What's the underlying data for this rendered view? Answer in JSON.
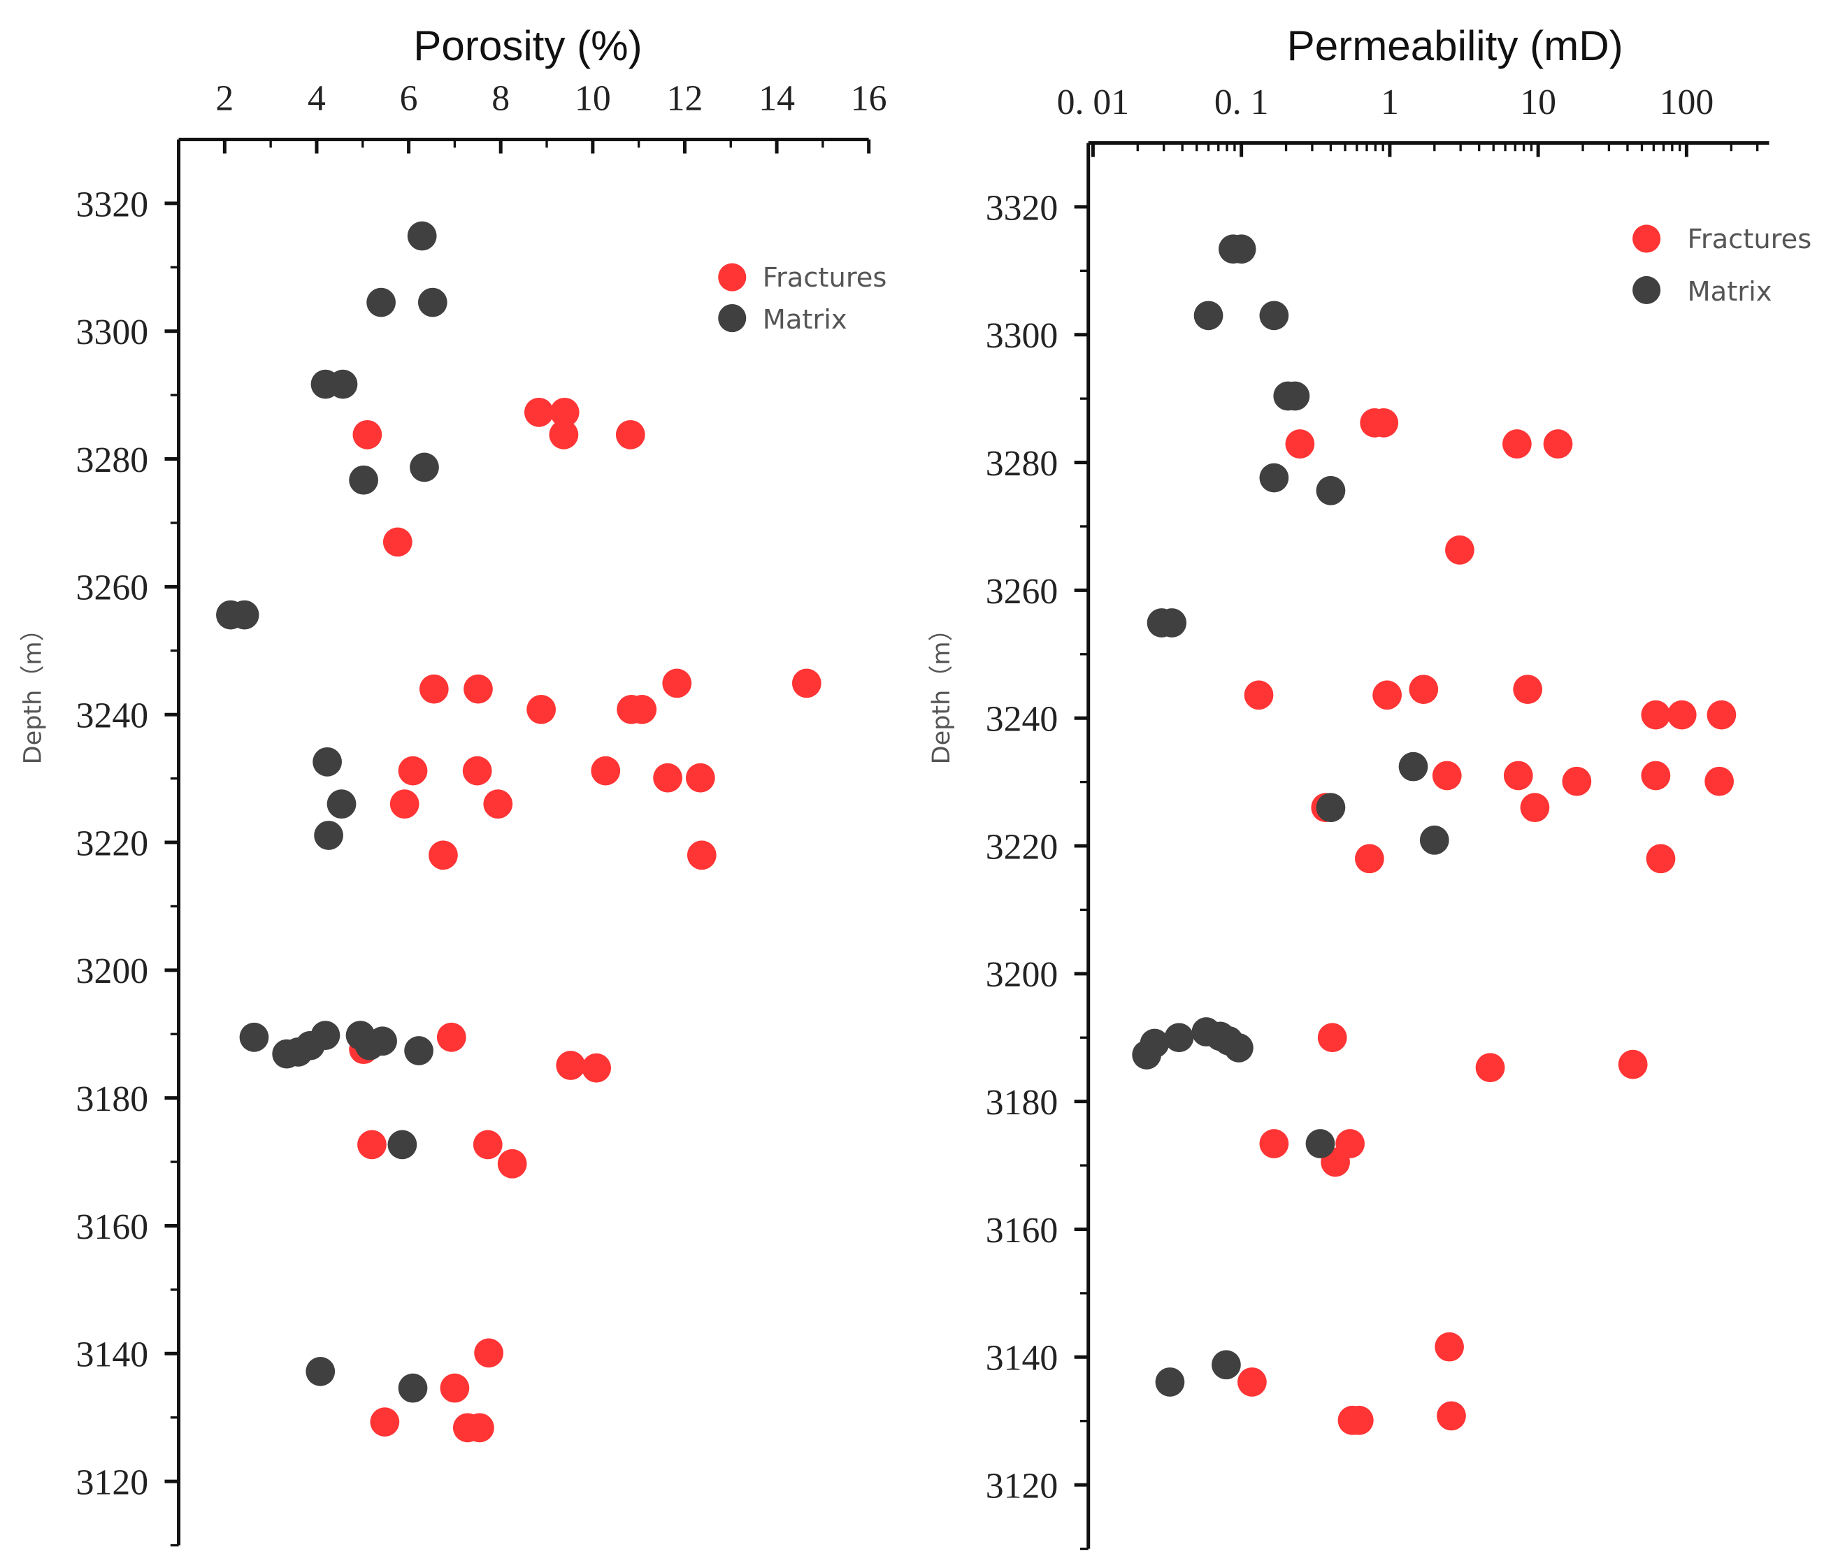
{
  "colors": {
    "Fractures": "#ff3434",
    "Matrix": "#404040"
  },
  "chart_data": [
    {
      "type": "scatter",
      "title": "Porosity (%)",
      "xlabel": "Porosity (%)",
      "ylabel": "Depth（m）",
      "xscale": "linear",
      "xlim": [
        1,
        16
      ],
      "ylim": [
        3110,
        3330
      ],
      "y_inverted": false,
      "xticks": [
        2,
        4,
        6,
        8,
        10,
        12,
        14,
        16
      ],
      "xtick_labels": [
        "2",
        "4",
        "6",
        "8",
        "10",
        "12",
        "14",
        "16"
      ],
      "yticks": [
        3120,
        3140,
        3160,
        3180,
        3200,
        3220,
        3240,
        3260,
        3280,
        3300,
        3320
      ],
      "ytick_labels": [
        "3120",
        "3140",
        "3160",
        "3180",
        "3200",
        "3220",
        "3240",
        "3260",
        "3280",
        "3300",
        "3320"
      ],
      "legend": {
        "placement": "top-right",
        "entries": [
          "Fractures",
          "Matrix"
        ]
      },
      "series": [
        {
          "name": "Fractures",
          "points": [
            [
              8.83,
              3287.3
            ],
            [
              9.39,
              3287.3
            ],
            [
              9.37,
              3283.8
            ],
            [
              5.1,
              3283.8
            ],
            [
              10.82,
              3283.8
            ],
            [
              5.76,
              3267.0
            ],
            [
              6.55,
              3244.0
            ],
            [
              7.51,
              3244.0
            ],
            [
              11.83,
              3244.9
            ],
            [
              14.65,
              3244.9
            ],
            [
              8.88,
              3240.8
            ],
            [
              10.84,
              3240.8
            ],
            [
              11.07,
              3240.8
            ],
            [
              6.09,
              3231.2
            ],
            [
              7.49,
              3231.2
            ],
            [
              10.28,
              3231.2
            ],
            [
              11.63,
              3230.1
            ],
            [
              12.34,
              3230.1
            ],
            [
              5.91,
              3226.0
            ],
            [
              7.94,
              3226.0
            ],
            [
              6.75,
              3218.0
            ],
            [
              12.37,
              3218.0
            ],
            [
              6.93,
              3189.5
            ],
            [
              5.02,
              3187.6
            ],
            [
              9.52,
              3185.1
            ],
            [
              10.08,
              3184.7
            ],
            [
              5.2,
              3172.7
            ],
            [
              7.72,
              3172.7
            ],
            [
              8.25,
              3169.7
            ],
            [
              7.74,
              3140.1
            ],
            [
              7.0,
              3134.6
            ],
            [
              5.48,
              3129.3
            ],
            [
              7.28,
              3128.4
            ],
            [
              7.54,
              3128.4
            ]
          ]
        },
        {
          "name": "Matrix",
          "points": [
            [
              6.29,
              3314.9
            ],
            [
              5.4,
              3304.5
            ],
            [
              6.52,
              3304.5
            ],
            [
              4.19,
              3291.7
            ],
            [
              4.57,
              3291.7
            ],
            [
              6.34,
              3278.7
            ],
            [
              5.02,
              3276.7
            ],
            [
              2.13,
              3255.6
            ],
            [
              2.43,
              3255.6
            ],
            [
              4.23,
              3232.6
            ],
            [
              4.54,
              3226.0
            ],
            [
              4.26,
              3221.1
            ],
            [
              2.64,
              3189.5
            ],
            [
              3.35,
              3186.9
            ],
            [
              3.6,
              3187.2
            ],
            [
              3.86,
              3188.2
            ],
            [
              4.19,
              3189.8
            ],
            [
              4.95,
              3189.8
            ],
            [
              5.15,
              3188.2
            ],
            [
              5.43,
              3188.9
            ],
            [
              6.22,
              3187.4
            ],
            [
              5.86,
              3172.7
            ],
            [
              4.08,
              3137.2
            ],
            [
              6.09,
              3134.6
            ]
          ]
        }
      ]
    },
    {
      "type": "scatter",
      "title": "Permeability (mD)",
      "xlabel": "Permeability (mD)",
      "ylabel": "Depth（m）",
      "xscale": "log",
      "xlim": [
        0.0093,
        360
      ],
      "ylim": [
        3110,
        3330
      ],
      "xticks": [
        0.01,
        0.1,
        1,
        10,
        100
      ],
      "xtick_labels": [
        "0. 01",
        "0. 1",
        "1",
        "10",
        "100"
      ],
      "yticks": [
        3120,
        3140,
        3160,
        3180,
        3200,
        3220,
        3240,
        3260,
        3280,
        3300,
        3320
      ],
      "ytick_labels": [
        "3120",
        "3140",
        "3160",
        "3180",
        "3200",
        "3220",
        "3240",
        "3260",
        "3280",
        "3300",
        "3320"
      ],
      "legend": {
        "placement": "top-right",
        "entries": [
          "Fractures",
          "Matrix"
        ]
      },
      "series": [
        {
          "name": "Fractures",
          "points": [
            [
              0.248,
              3282.9
            ],
            [
              0.79,
              3286.2
            ],
            [
              0.91,
              3286.2
            ],
            [
              7.2,
              3282.9
            ],
            [
              13.6,
              3282.9
            ],
            [
              2.96,
              3266.3
            ],
            [
              0.131,
              3243.6
            ],
            [
              0.96,
              3243.6
            ],
            [
              1.69,
              3244.5
            ],
            [
              8.5,
              3244.5
            ],
            [
              62,
              3240.5
            ],
            [
              93,
              3240.5
            ],
            [
              172,
              3240.5
            ],
            [
              2.43,
              3231.0
            ],
            [
              7.35,
              3231.0
            ],
            [
              18.2,
              3230.1
            ],
            [
              62,
              3231.0
            ],
            [
              166,
              3230.1
            ],
            [
              0.37,
              3226.0
            ],
            [
              9.5,
              3226.0
            ],
            [
              0.73,
              3218.0
            ],
            [
              67,
              3218.0
            ],
            [
              0.41,
              3190.0
            ],
            [
              4.75,
              3185.3
            ],
            [
              43.5,
              3185.8
            ],
            [
              0.166,
              3173.4
            ],
            [
              0.54,
              3173.4
            ],
            [
              0.43,
              3170.5
            ],
            [
              2.52,
              3141.6
            ],
            [
              0.118,
              3136.1
            ],
            [
              0.56,
              3130.1
            ],
            [
              0.62,
              3130.1
            ],
            [
              2.6,
              3130.8
            ]
          ]
        },
        {
          "name": "Matrix",
          "points": [
            [
              0.088,
              3313.4
            ],
            [
              0.1,
              3313.4
            ],
            [
              0.06,
              3303.0
            ],
            [
              0.166,
              3303.0
            ],
            [
              0.206,
              3290.4
            ],
            [
              0.23,
              3290.4
            ],
            [
              0.166,
              3277.6
            ],
            [
              0.4,
              3275.6
            ],
            [
              0.029,
              3254.9
            ],
            [
              0.034,
              3254.9
            ],
            [
              1.44,
              3232.4
            ],
            [
              0.4,
              3226.0
            ],
            [
              2.0,
              3220.9
            ],
            [
              0.023,
              3187.3
            ],
            [
              0.026,
              3189.1
            ],
            [
              0.038,
              3190.0
            ],
            [
              0.058,
              3190.9
            ],
            [
              0.072,
              3190.2
            ],
            [
              0.082,
              3189.5
            ],
            [
              0.096,
              3188.4
            ],
            [
              0.34,
              3173.4
            ],
            [
              0.079,
              3138.8
            ],
            [
              0.033,
              3136.1
            ]
          ]
        }
      ]
    }
  ]
}
